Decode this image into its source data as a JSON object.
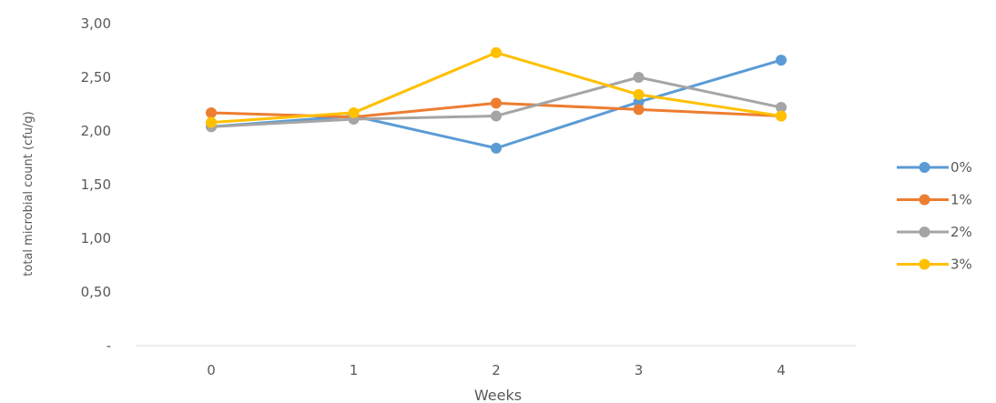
{
  "chart_data": {
    "type": "line",
    "xlabel": "Weeks",
    "ylabel": "total microbial count (cfu/g)",
    "categories": [
      "0",
      "1",
      "2",
      "3",
      "4"
    ],
    "ylim": [
      0,
      3
    ],
    "y_ticks": [
      0,
      0.5,
      1,
      1.5,
      2,
      2.5,
      3
    ],
    "y_tick_labels": [
      "-",
      "0,50",
      "1,00",
      "1,50",
      "2,00",
      "2,50",
      "3,00"
    ],
    "grid": false,
    "legend_position": "right",
    "series": [
      {
        "name": "0%",
        "color": "#5B9BD5",
        "values": [
          2.04,
          2.14,
          1.84,
          2.27,
          2.66
        ]
      },
      {
        "name": "1%",
        "color": "#ED7D31",
        "values": [
          2.17,
          2.13,
          2.26,
          2.2,
          2.14
        ]
      },
      {
        "name": "2%",
        "color": "#A5A5A5",
        "values": [
          2.04,
          2.11,
          2.14,
          2.5,
          2.22
        ]
      },
      {
        "name": "3%",
        "color": "#FFC000",
        "values": [
          2.08,
          2.17,
          2.73,
          2.34,
          2.14
        ]
      }
    ]
  }
}
